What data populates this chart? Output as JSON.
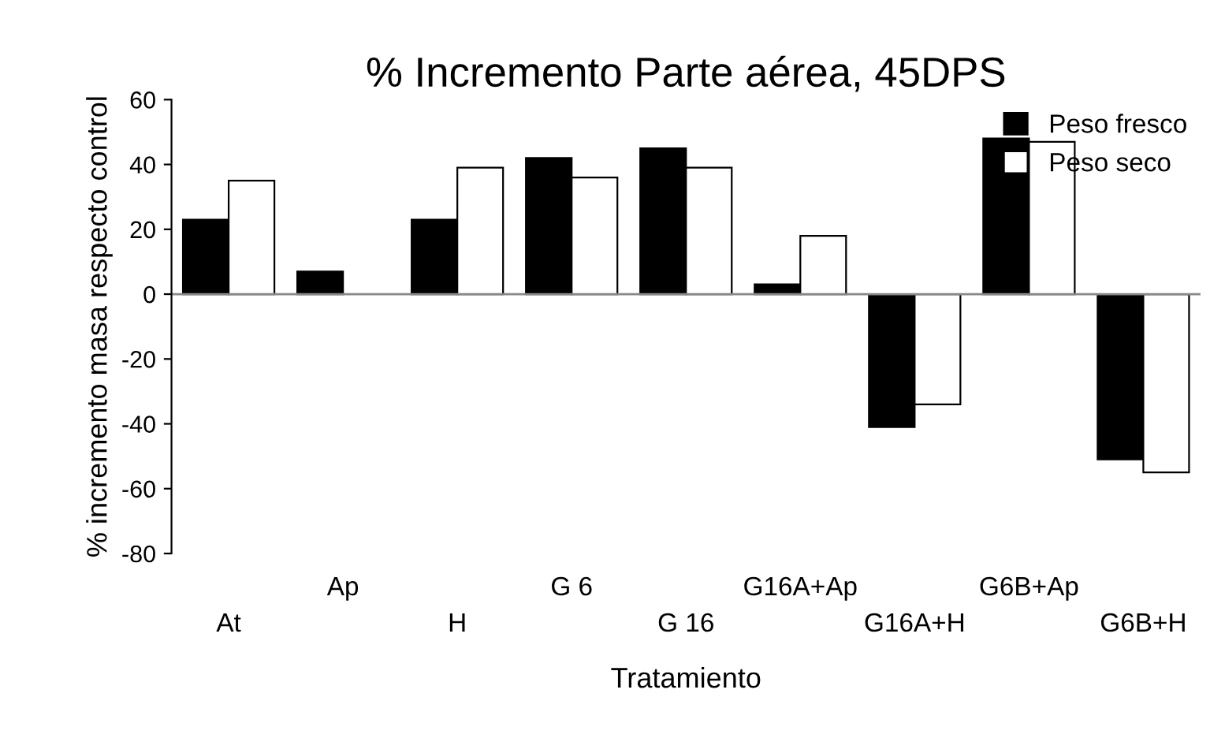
{
  "chart_data": {
    "type": "bar",
    "title": "% Incremento Parte aérea, 45DPS",
    "xlabel": "Tratamiento",
    "ylabel": "% incremento masa respecto control",
    "categories": [
      "At",
      "Ap",
      "H",
      "G 6",
      "G 16",
      "G16A+Ap",
      "G16A+H",
      "G6B+Ap",
      "G6B+H"
    ],
    "series": [
      {
        "name": "Peso fresco",
        "color": "#000000",
        "values": [
          23,
          7,
          23,
          42,
          45,
          3,
          -41,
          48,
          -51
        ]
      },
      {
        "name": "Peso seco",
        "color": "#ffffff",
        "values": [
          35,
          null,
          39,
          36,
          39,
          18,
          -34,
          47,
          -55
        ]
      }
    ],
    "ylim": [
      -80,
      60
    ],
    "yticks": [
      -80,
      -60,
      -40,
      -20,
      0,
      20,
      40,
      60
    ],
    "grid": false,
    "ref_lines": [
      {
        "axis": "y",
        "value": 0,
        "color": "#888888"
      }
    ],
    "legend": "top right"
  }
}
